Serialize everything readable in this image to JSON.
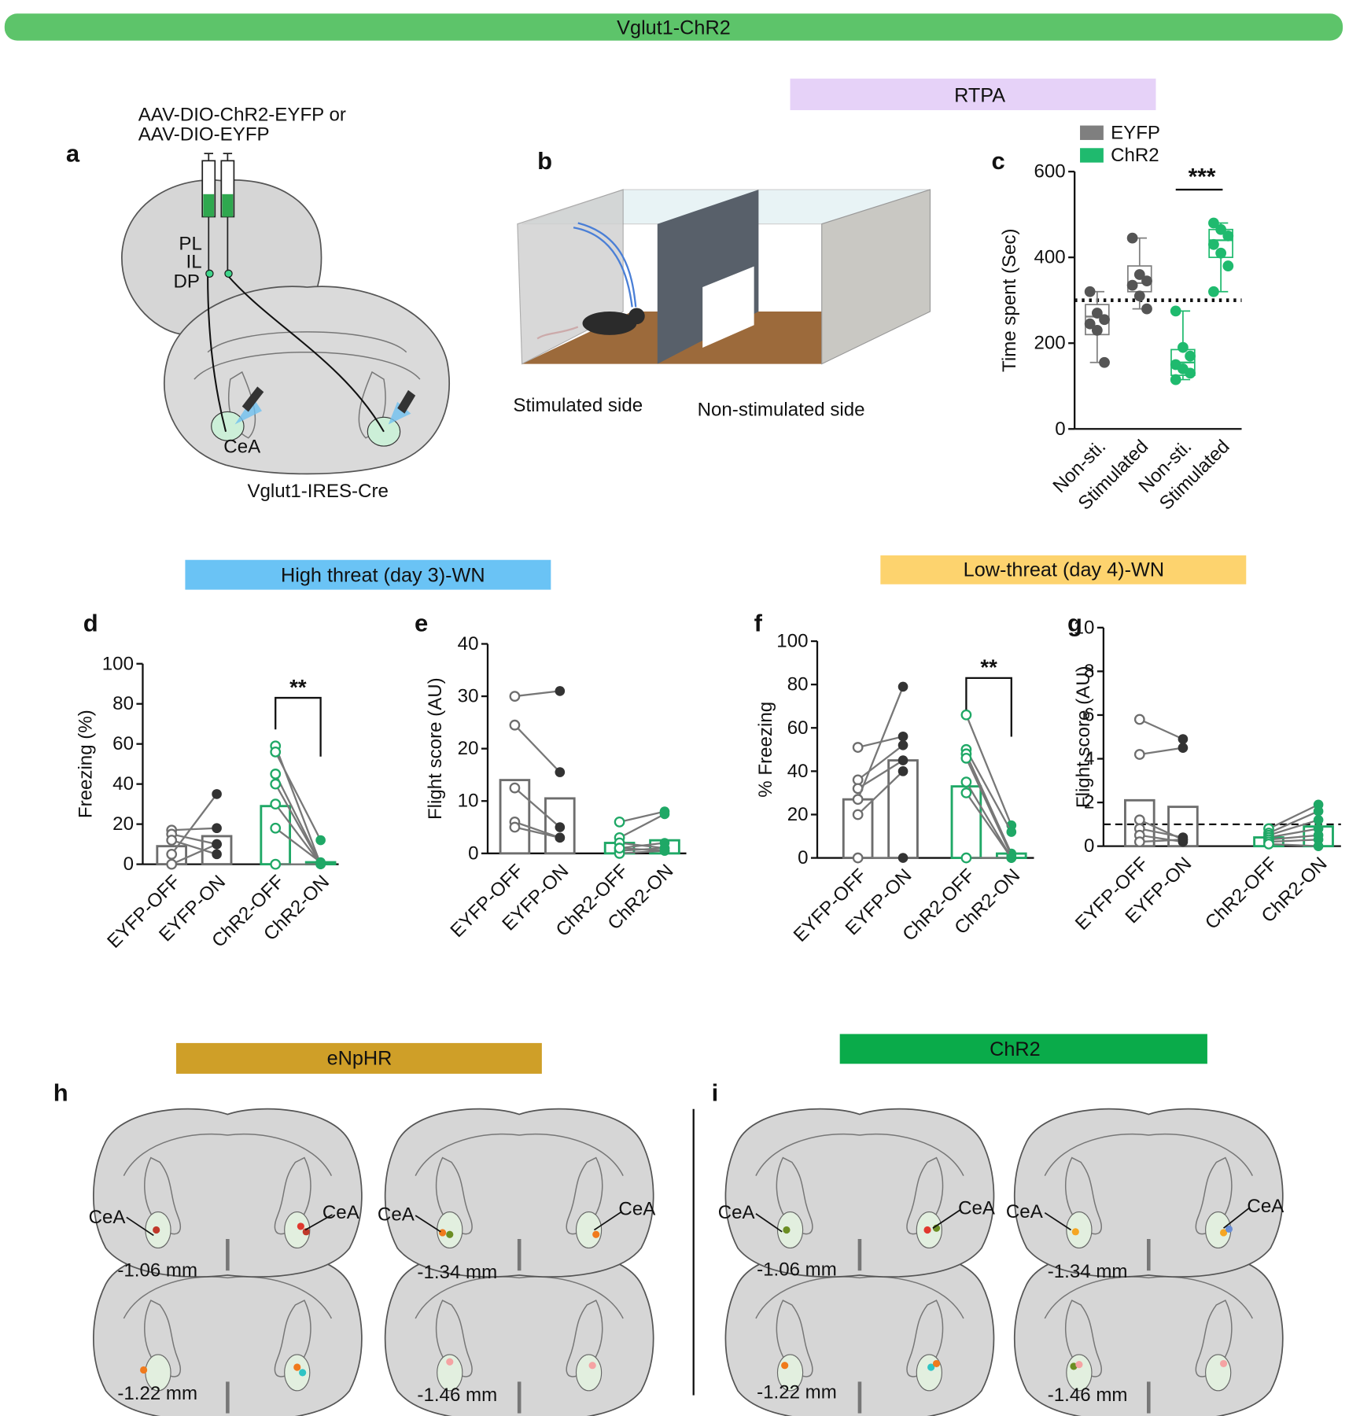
{
  "header": {
    "title": "Vglut1-ChR2"
  },
  "banners": [
    "RTPA",
    "High threat (day 3)-WN",
    "Low-threat (day 4)-WN",
    "eNpHR",
    "ChR2"
  ],
  "panel_labels": [
    "a",
    "b",
    "c",
    "d",
    "e",
    "f",
    "g",
    "h",
    "i"
  ],
  "panel_a": {
    "virus": [
      "AAV-DIO-ChR2-EYFP or",
      "AAV-DIO-EYFP"
    ],
    "regions": [
      "PL",
      "IL",
      "DP"
    ],
    "target": "CeA",
    "mouse_line": "Vglut1-IRES-Cre"
  },
  "panel_b": {
    "sides": [
      "Stimulated side",
      "Non-stimulated side"
    ]
  },
  "atlas": [
    {
      "sections": [
        {
          "level": "-1.06 mm",
          "labels": [
            "CeA",
            "CeA"
          ]
        },
        {
          "level": "-1.34 mm",
          "labels": [
            "CeA",
            "CeA"
          ]
        },
        {
          "level": "-1.22 mm"
        },
        {
          "level": "-1.46 mm"
        }
      ]
    },
    {
      "sections": [
        {
          "level": "-1.06 mm",
          "labels": [
            "CeA",
            "CeA"
          ]
        },
        {
          "level": "-1.34 mm",
          "labels": [
            "CeA",
            "CeA"
          ]
        },
        {
          "level": "-1.22 mm"
        },
        {
          "level": "-1.46 mm"
        }
      ]
    }
  ],
  "chart_data": [
    {
      "type": "box",
      "ylabel": "Time spent (Sec)",
      "ylim": [
        0,
        600
      ],
      "yticks": [
        0,
        200,
        400,
        600
      ],
      "reference_line": 300,
      "annotation": "***",
      "groups": [
        {
          "name": "EYFP",
          "color": "#7f7f7f",
          "categories": [
            "Non-sti.",
            "Stimulated"
          ],
          "points": [
            [
              320,
              270,
              255,
              245,
              230,
              155
            ],
            [
              445,
              360,
              345,
              335,
              310,
              280
            ]
          ],
          "boxes": [
            {
              "min": 155,
              "q1": 220,
              "median": 262,
              "q3": 290,
              "max": 320
            },
            {
              "min": 280,
              "q1": 320,
              "median": 340,
              "q3": 380,
              "max": 445
            }
          ]
        },
        {
          "name": "ChR2",
          "color": "#1fba6e",
          "categories": [
            "Non-sti.",
            "Stimulated"
          ],
          "points": [
            [
              275,
              190,
              170,
              150,
              140,
              130,
              115
            ],
            [
              480,
              465,
              450,
              430,
              410,
              380,
              320
            ]
          ],
          "boxes": [
            {
              "min": 115,
              "q1": 125,
              "median": 155,
              "q3": 185,
              "max": 275
            },
            {
              "min": 320,
              "q1": 400,
              "median": 440,
              "q3": 465,
              "max": 480
            }
          ]
        }
      ]
    },
    {
      "type": "paired_bar",
      "ylabel": "Freezing (%)",
      "ylim": [
        0,
        100
      ],
      "yticks": [
        0,
        20,
        40,
        60,
        80,
        100
      ],
      "annotation": "**",
      "groups": [
        {
          "color": "#6d6d6d",
          "categories": [
            "EYFP-OFF",
            "EYFP-ON"
          ],
          "bars": [
            9,
            14
          ],
          "pairs": [
            [
              17,
              18
            ],
            [
              15,
              10
            ],
            [
              12,
              5
            ],
            [
              5,
              35
            ],
            [
              0,
              10
            ]
          ]
        },
        {
          "color": "#1fa866",
          "categories": [
            "ChR2-OFF",
            "ChR2-ON"
          ],
          "bars": [
            29,
            1
          ],
          "pairs": [
            [
              59,
              0
            ],
            [
              56,
              12
            ],
            [
              45,
              0
            ],
            [
              40,
              0
            ],
            [
              30,
              0
            ],
            [
              18,
              1
            ],
            [
              0,
              0
            ]
          ]
        }
      ]
    },
    {
      "type": "paired_bar",
      "ylabel": "Flight score (AU)",
      "ylim": [
        0,
        40
      ],
      "yticks": [
        0,
        10,
        20,
        30,
        40
      ],
      "groups": [
        {
          "color": "#6d6d6d",
          "categories": [
            "EYFP-OFF",
            "EYFP-ON"
          ],
          "bars": [
            14,
            10.5
          ],
          "pairs": [
            [
              30,
              31
            ],
            [
              24.5,
              15.5
            ],
            [
              12.5,
              5
            ],
            [
              6,
              3
            ],
            [
              5,
              3
            ]
          ]
        },
        {
          "color": "#1fa866",
          "categories": [
            "ChR2-OFF",
            "ChR2-ON"
          ],
          "bars": [
            2,
            2.5
          ],
          "pairs": [
            [
              6,
              8
            ],
            [
              3,
              7.5
            ],
            [
              2,
              1
            ],
            [
              1,
              0.5
            ],
            [
              0.5,
              1
            ],
            [
              0,
              0.5
            ],
            [
              1,
              2
            ]
          ]
        }
      ]
    },
    {
      "type": "paired_bar",
      "ylabel": "% Freezing",
      "ylim": [
        0,
        100
      ],
      "yticks": [
        0,
        20,
        40,
        60,
        80,
        100
      ],
      "annotation": "**",
      "groups": [
        {
          "color": "#6d6d6d",
          "categories": [
            "EYFP-OFF",
            "EYFP-ON"
          ],
          "bars": [
            27,
            45
          ],
          "pairs": [
            [
              51,
              56
            ],
            [
              36,
              52
            ],
            [
              32,
              45
            ],
            [
              27,
              79
            ],
            [
              20,
              40
            ],
            [
              0,
              0
            ]
          ]
        },
        {
          "color": "#1fa866",
          "categories": [
            "ChR2-OFF",
            "ChR2-ON"
          ],
          "bars": [
            33,
            2
          ],
          "pairs": [
            [
              66,
              15
            ],
            [
              50,
              12
            ],
            [
              48,
              2
            ],
            [
              46,
              1
            ],
            [
              35,
              0
            ],
            [
              30,
              0
            ],
            [
              0,
              0
            ]
          ]
        }
      ]
    },
    {
      "type": "paired_bar",
      "ylabel": "Flight score (AU)",
      "ylim": [
        0,
        10
      ],
      "yticks": [
        0,
        2,
        4,
        6,
        8,
        10
      ],
      "reference_line": 1,
      "groups": [
        {
          "color": "#6d6d6d",
          "categories": [
            "EYFP-OFF",
            "EYFP-ON"
          ],
          "bars": [
            2.1,
            1.8
          ],
          "pairs": [
            [
              5.8,
              4.9
            ],
            [
              4.2,
              4.5
            ],
            [
              1.2,
              0.3
            ],
            [
              0.8,
              0.4
            ],
            [
              0.5,
              0.2
            ],
            [
              0.2,
              0.3
            ]
          ]
        },
        {
          "color": "#1fa866",
          "categories": [
            "ChR2-OFF",
            "ChR2-ON"
          ],
          "bars": [
            0.4,
            0.9
          ],
          "pairs": [
            [
              0.8,
              1.9
            ],
            [
              0.6,
              1.6
            ],
            [
              0.5,
              1.2
            ],
            [
              0.4,
              0.8
            ],
            [
              0.3,
              0.5
            ],
            [
              0.2,
              0.3
            ],
            [
              0.1,
              0
            ]
          ]
        }
      ]
    }
  ]
}
